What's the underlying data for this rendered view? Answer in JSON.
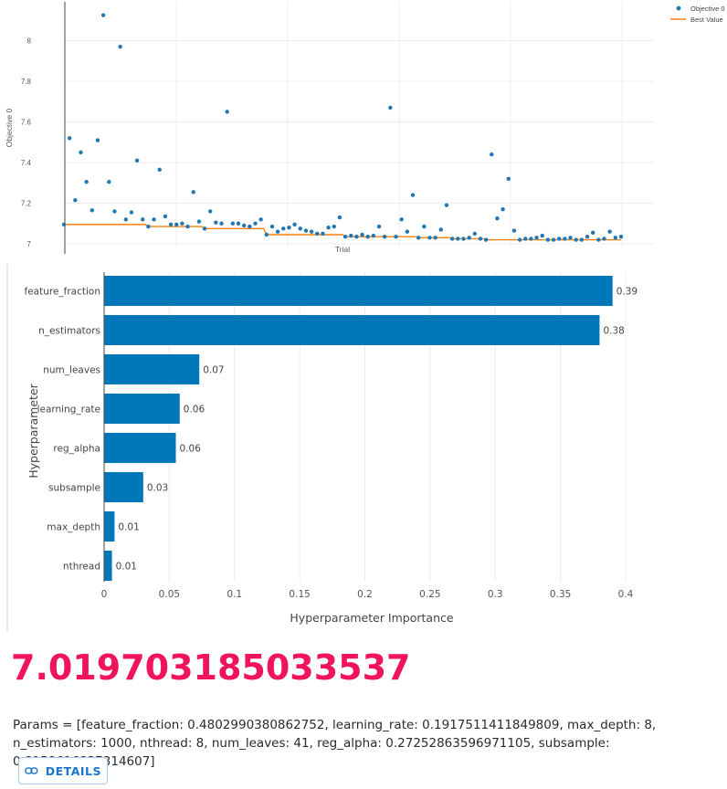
{
  "chart_data": [
    {
      "type": "scatter",
      "xlabel": "Trial",
      "ylabel": "Objective 0",
      "ylim": [
        6.99,
        8.25
      ],
      "yticks": [
        "7",
        "7.2",
        "7.4",
        "7.6",
        "7.8",
        "8"
      ],
      "ytick_values": [
        7,
        7.2,
        7.4,
        7.6,
        7.8,
        8
      ],
      "grid": true,
      "legend_position": "top-right",
      "legend": [
        "Objective 0",
        "Best Value"
      ],
      "colors": {
        "points": "#1f77b4",
        "best": "#ff7f0e"
      },
      "series": [
        {
          "name": "Objective 0",
          "type": "scatter",
          "values": [
            7.095,
            7.52,
            7.215,
            7.45,
            7.305,
            7.165,
            7.51,
            8.125,
            7.305,
            7.16,
            7.97,
            7.12,
            7.155,
            7.41,
            7.12,
            7.085,
            7.12,
            7.365,
            7.135,
            7.095,
            7.095,
            7.1,
            7.085,
            7.255,
            7.11,
            7.075,
            7.16,
            7.105,
            7.1,
            7.65,
            7.1,
            7.1,
            7.09,
            7.085,
            7.1,
            7.12,
            7.045,
            7.085,
            7.06,
            7.075,
            7.08,
            7.095,
            7.075,
            7.065,
            7.06,
            7.05,
            7.05,
            7.08,
            7.085,
            7.13,
            7.035,
            7.04,
            7.035,
            7.045,
            7.035,
            7.04,
            7.085,
            7.035,
            7.67,
            7.035,
            7.12,
            7.06,
            7.24,
            7.03,
            7.085,
            7.03,
            7.03,
            7.07,
            7.19,
            7.025,
            7.025,
            7.025,
            7.03,
            7.05,
            7.025,
            7.02,
            7.44,
            7.125,
            7.17,
            7.32,
            7.065,
            7.02,
            7.025,
            7.025,
            7.03,
            7.04,
            7.02,
            7.02,
            7.025,
            7.025,
            7.03,
            7.02,
            7.02,
            7.035,
            7.055,
            7.02,
            7.025,
            7.06,
            7.03,
            7.035
          ]
        },
        {
          "name": "Best Value",
          "type": "line",
          "values": [
            7.095,
            7.095,
            7.095,
            7.095,
            7.095,
            7.095,
            7.095,
            7.095,
            7.095,
            7.095,
            7.095,
            7.095,
            7.095,
            7.095,
            7.095,
            7.085,
            7.085,
            7.085,
            7.085,
            7.085,
            7.085,
            7.085,
            7.085,
            7.085,
            7.085,
            7.075,
            7.075,
            7.075,
            7.075,
            7.075,
            7.075,
            7.075,
            7.075,
            7.075,
            7.075,
            7.075,
            7.045,
            7.045,
            7.045,
            7.045,
            7.045,
            7.045,
            7.045,
            7.045,
            7.045,
            7.045,
            7.045,
            7.045,
            7.045,
            7.045,
            7.035,
            7.035,
            7.035,
            7.035,
            7.035,
            7.035,
            7.035,
            7.035,
            7.035,
            7.035,
            7.035,
            7.035,
            7.035,
            7.03,
            7.03,
            7.03,
            7.03,
            7.03,
            7.03,
            7.025,
            7.025,
            7.025,
            7.025,
            7.025,
            7.025,
            7.02,
            7.02,
            7.02,
            7.02,
            7.02,
            7.02,
            7.02,
            7.02,
            7.02,
            7.02,
            7.02,
            7.02,
            7.02,
            7.02,
            7.02,
            7.02,
            7.02,
            7.02,
            7.02,
            7.02,
            7.02,
            7.02,
            7.02,
            7.02,
            7.02
          ]
        }
      ]
    },
    {
      "type": "bar",
      "orientation": "horizontal",
      "xlabel": "Hyperparameter Importance",
      "ylabel": "Hyperparameter",
      "xlim": [
        0,
        0.4
      ],
      "xticks": [
        "0",
        "0.05",
        "0.1",
        "0.15",
        "0.2",
        "0.25",
        "0.3",
        "0.35",
        "0.4"
      ],
      "xtick_values": [
        0,
        0.05,
        0.1,
        0.15,
        0.2,
        0.25,
        0.3,
        0.35,
        0.4
      ],
      "grid": true,
      "color": "#0077b8",
      "categories": [
        "feature_fraction",
        "n_estimators",
        "num_leaves",
        "learning_rate",
        "reg_alpha",
        "subsample",
        "max_depth",
        "nthread"
      ],
      "values": [
        0.39,
        0.38,
        0.073,
        0.058,
        0.055,
        0.03,
        0.008,
        0.006
      ],
      "value_labels": [
        "0.39",
        "0.38",
        "0.07",
        "0.06",
        "0.06",
        "0.03",
        "0.01",
        "0.01"
      ]
    }
  ],
  "result": {
    "best_value": "7.019703185033537",
    "params_text": "Params = [feature_fraction: 0.4802990380862752, learning_rate: 0.1917511411849809, max_depth: 8, n_estimators: 1000, nthread: 8, num_leaves: 41, reg_alpha: 0.27252863596971105, subsample: 0.8158616837314607]",
    "details_label": "DETAILS",
    "details_icon": "link-icon"
  }
}
